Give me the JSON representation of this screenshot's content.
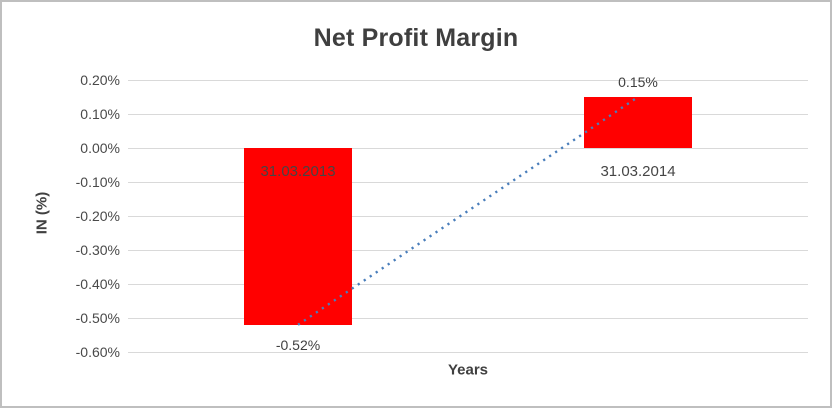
{
  "window": {
    "background_color": "#ffffff",
    "border_color": "#bfbfbf"
  },
  "chart_data": {
    "type": "bar",
    "title": "Net Profit Margin",
    "xlabel": "Years",
    "ylabel": "IN (%)",
    "categories": [
      "31.03.2013",
      "31.03.2014"
    ],
    "values": [
      -0.52,
      0.15
    ],
    "value_labels": [
      "-0.52%",
      "0.15%"
    ],
    "y_ticks": [
      {
        "label": "0.20%",
        "value": 0.2
      },
      {
        "label": "0.10%",
        "value": 0.1
      },
      {
        "label": "0.00%",
        "value": 0.0
      },
      {
        "label": "-0.10%",
        "value": -0.1
      },
      {
        "label": "-0.20%",
        "value": -0.2
      },
      {
        "label": "-0.30%",
        "value": -0.3
      },
      {
        "label": "-0.40%",
        "value": -0.4
      },
      {
        "label": "-0.50%",
        "value": -0.5
      },
      {
        "label": "-0.60%",
        "value": -0.6
      }
    ],
    "ylim": [
      -0.6,
      0.2
    ],
    "grid": true,
    "legend": "none",
    "bar_color": "#ff0000",
    "trendline": {
      "style": "dotted",
      "color": "#4a7ebb",
      "points": [
        -0.52,
        0.15
      ]
    },
    "unit": "percent"
  }
}
